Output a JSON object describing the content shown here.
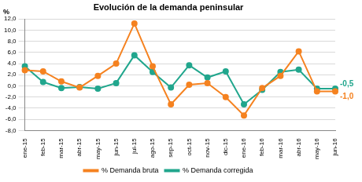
{
  "chart_data": {
    "type": "line",
    "title": "Evolución de la demanda peninsular",
    "y_label": "%",
    "categories": [
      "ene-15",
      "feb-15",
      "mar-15",
      "abr-15",
      "may-15",
      "jun-15",
      "jul-15",
      "ago-15",
      "sep-15",
      "oct-15",
      "nov-15",
      "dic-15",
      "ene-16",
      "feb-16",
      "mar-16",
      "abr-16",
      "may-16",
      "jun-16"
    ],
    "series": [
      {
        "name": "% Demanda bruta",
        "color": "#f58220",
        "marker": "circle",
        "values": [
          2.8,
          2.6,
          0.8,
          -0.3,
          1.8,
          4.0,
          11.2,
          3.5,
          -3.3,
          0.2,
          0.5,
          -2.0,
          -5.3,
          -0.4,
          1.8,
          6.2,
          -1.0,
          -1.0
        ]
      },
      {
        "name": "% Demanda corregida",
        "color": "#21a68d",
        "marker": "circle",
        "values": [
          3.5,
          0.7,
          -0.4,
          -0.2,
          -0.5,
          0.5,
          5.5,
          2.5,
          -0.3,
          3.7,
          1.5,
          2.6,
          -3.3,
          -0.7,
          2.5,
          2.9,
          -0.5,
          -0.5
        ]
      }
    ],
    "annotations": [
      {
        "text": "-0,5",
        "value": -0.5,
        "category": "jun-16",
        "color": "#21a68d"
      },
      {
        "text": "-1,0",
        "value": -1.0,
        "category": "jun-16",
        "color": "#f58220"
      }
    ],
    "ylim": [
      -8,
      12
    ],
    "yticks": [
      {
        "value": -8,
        "label": "-8,0"
      },
      {
        "value": -6,
        "label": "-6,0"
      },
      {
        "value": -4,
        "label": "-4,0"
      },
      {
        "value": -2,
        "label": "-2,0"
      },
      {
        "value": 0,
        "label": "0,0"
      },
      {
        "value": 2,
        "label": "2,0"
      },
      {
        "value": 4,
        "label": "4,0"
      },
      {
        "value": 6,
        "label": "6,0"
      },
      {
        "value": 8,
        "label": "8,0"
      },
      {
        "value": 10,
        "label": "10,0"
      },
      {
        "value": 12,
        "label": "12,0"
      }
    ],
    "grid": true,
    "legend": "bottom"
  }
}
